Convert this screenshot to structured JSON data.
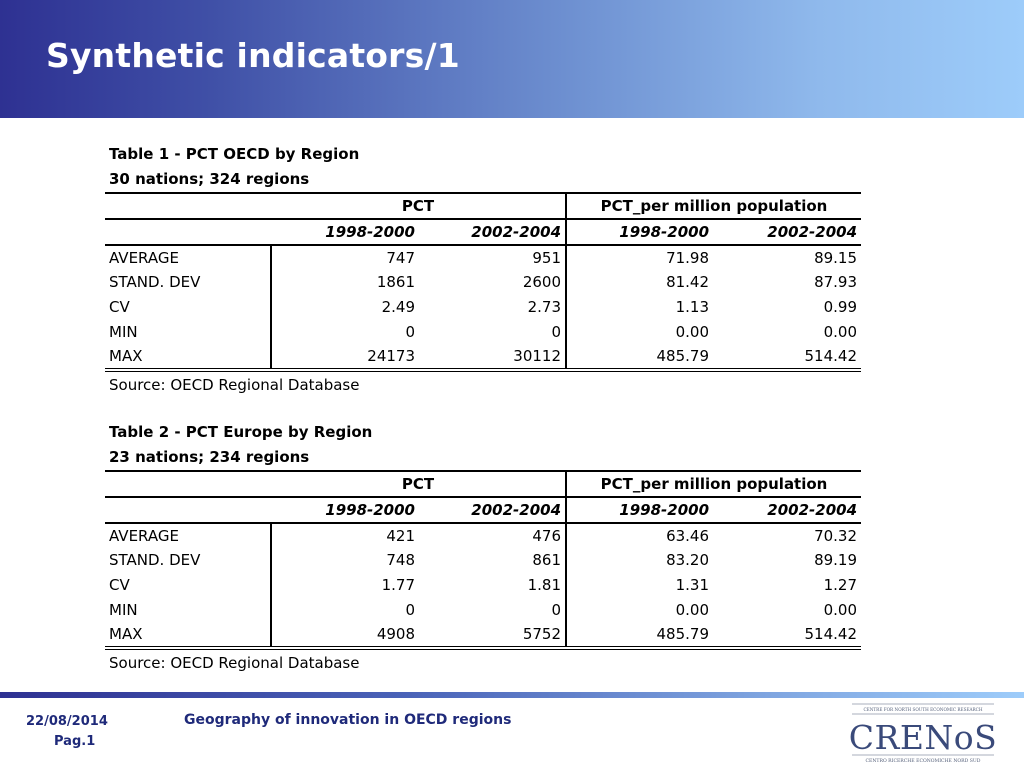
{
  "slide": {
    "title": "Synthetic indicators/1",
    "footer": {
      "date": "22/08/2014",
      "page": "Pag.1",
      "topic": "Geography of innovation in OECD regions",
      "logo": {
        "top_text": "CENTRE FOR NORTH SOUTH ECONOMIC RESEARCH",
        "brand": "CRENoS",
        "bottom_text": "CENTRO RICERCHE ECONOMICHE NORD SUD"
      }
    }
  },
  "table1": {
    "caption1": "Table 1 - PCT OECD by Region",
    "caption2": "30 nations; 324 regions",
    "group_pct": "PCT",
    "group_pcpm": "PCT_per million population",
    "periods": [
      "1998-2000",
      "2002-2004",
      "1998-2000",
      "2002-2004"
    ],
    "rows": [
      {
        "label": "AVERAGE",
        "values": [
          "747",
          "951",
          "71.98",
          "89.15"
        ]
      },
      {
        "label": "STAND. DEV",
        "values": [
          "1861",
          "2600",
          "81.42",
          "87.93"
        ]
      },
      {
        "label": "CV",
        "values": [
          "2.49",
          "2.73",
          "1.13",
          "0.99"
        ]
      },
      {
        "label": "MIN",
        "values": [
          "0",
          "0",
          "0.00",
          "0.00"
        ]
      },
      {
        "label": "MAX",
        "values": [
          "24173",
          "30112",
          "485.79",
          "514.42"
        ]
      }
    ],
    "source": "Source: OECD Regional Database"
  },
  "table2": {
    "caption1": "Table 2 - PCT Europe by Region",
    "caption2": "23 nations; 234 regions",
    "group_pct": "PCT",
    "group_pcpm": "PCT_per million population",
    "periods": [
      "1998-2000",
      "2002-2004",
      "1998-2000",
      "2002-2004"
    ],
    "rows": [
      {
        "label": "AVERAGE",
        "values": [
          "421",
          "476",
          "63.46",
          "70.32"
        ]
      },
      {
        "label": "STAND. DEV",
        "values": [
          "748",
          "861",
          "83.20",
          "89.19"
        ]
      },
      {
        "label": "CV",
        "values": [
          "1.77",
          "1.81",
          "1.31",
          "1.27"
        ]
      },
      {
        "label": "MIN",
        "values": [
          "0",
          "0",
          "0.00",
          "0.00"
        ]
      },
      {
        "label": "MAX",
        "values": [
          "4908",
          "5752",
          "485.79",
          "514.42"
        ]
      }
    ],
    "source": "Source: OECD Regional Database"
  }
}
